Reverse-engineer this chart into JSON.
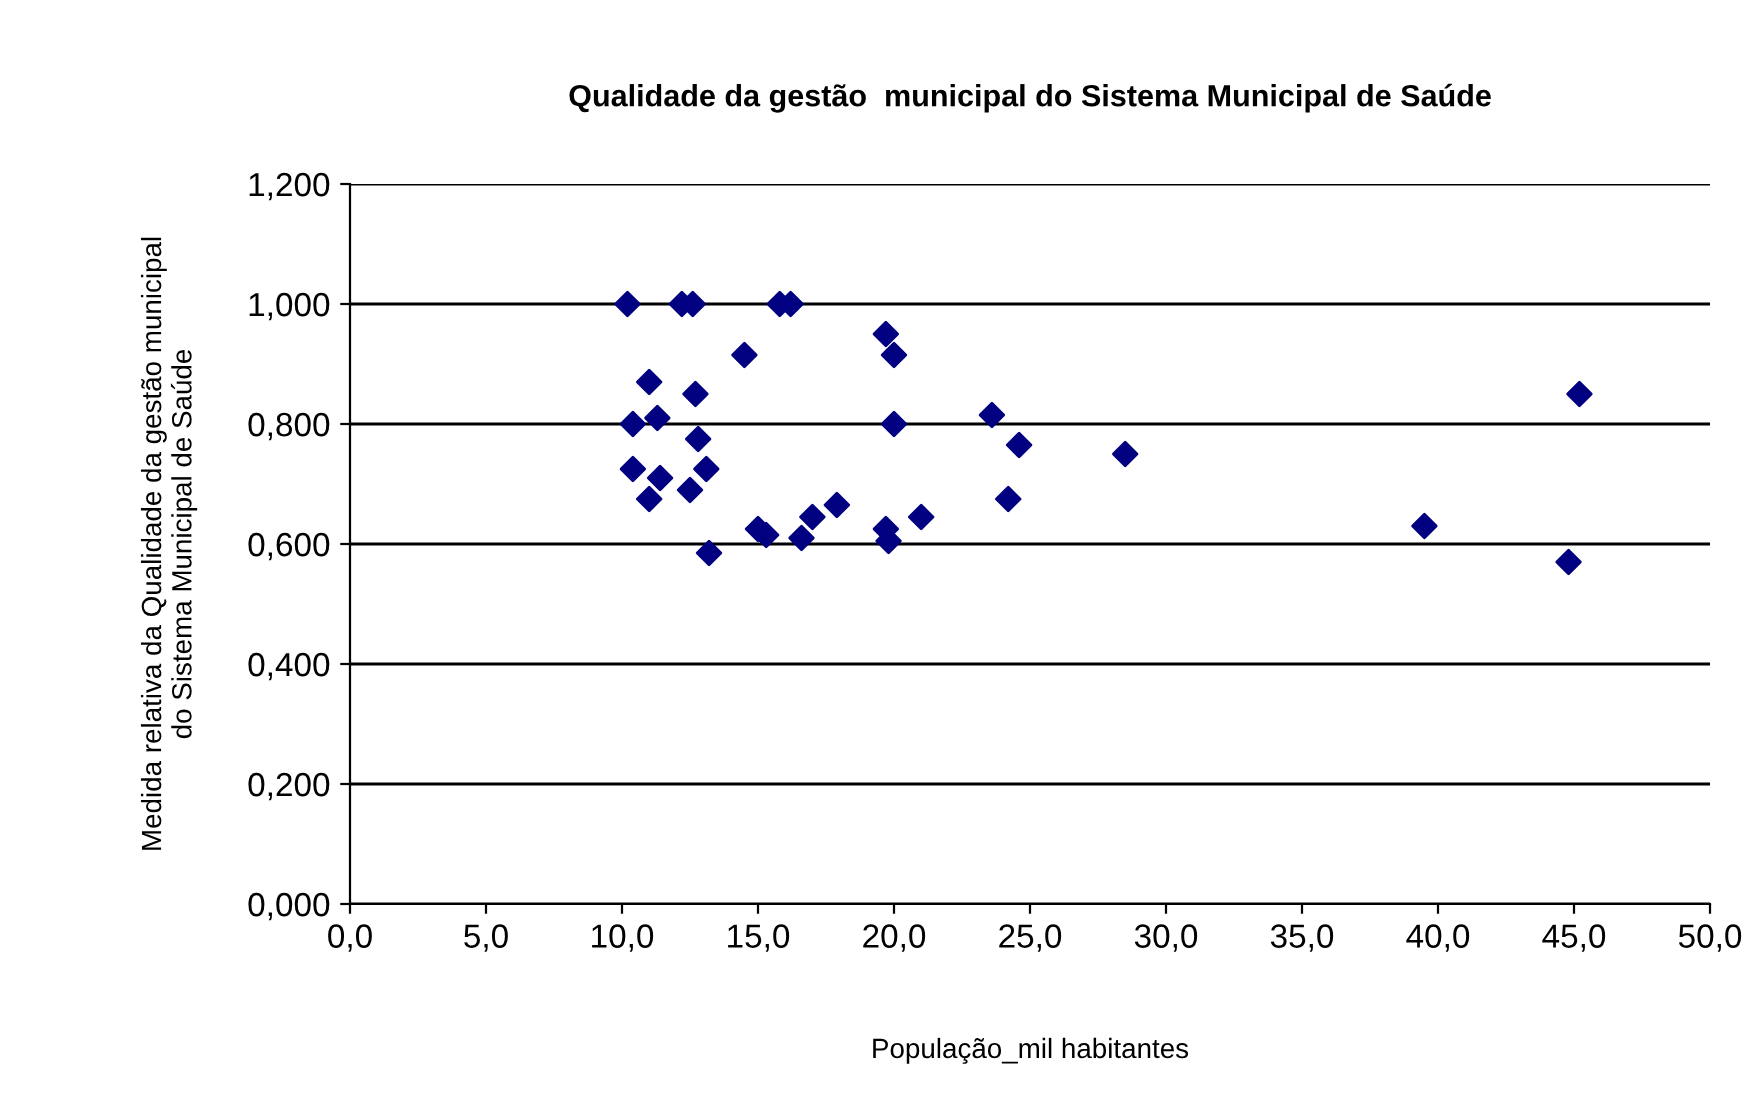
{
  "chart_data": {
    "type": "scatter",
    "title": "Qualidade da gestão  municipal do Sistema Municipal de Saúde",
    "xlabel": "População_mil habitantes",
    "ylabel": "Medida relativa da Qualidade da gestão municipal\ndo Sistema Municipal de Saúde",
    "marker": "diamond",
    "grid": "y",
    "legend": false,
    "xlim": [
      0,
      50
    ],
    "xticks": [
      {
        "value": 0,
        "label": "0,0"
      },
      {
        "value": 5,
        "label": "5,0"
      },
      {
        "value": 10,
        "label": "10,0"
      },
      {
        "value": 15,
        "label": "15,0"
      },
      {
        "value": 20,
        "label": "20,0"
      },
      {
        "value": 25,
        "label": "25,0"
      },
      {
        "value": 30,
        "label": "30,0"
      },
      {
        "value": 35,
        "label": "35,0"
      },
      {
        "value": 40,
        "label": "40,0"
      },
      {
        "value": 45,
        "label": "45,0"
      },
      {
        "value": 50,
        "label": "50,0"
      }
    ],
    "ylim": [
      0,
      1.2
    ],
    "yticks": [
      {
        "value": 0,
        "label": "0,000"
      },
      {
        "value": 0.2,
        "label": "0,200"
      },
      {
        "value": 0.4,
        "label": "0,400"
      },
      {
        "value": 0.6,
        "label": "0,600"
      },
      {
        "value": 0.8,
        "label": "0,800"
      },
      {
        "value": 1.0,
        "label": "1,000"
      },
      {
        "value": 1.2,
        "label": "1,200"
      }
    ],
    "series": [
      {
        "color": "#000080",
        "x": [
          10.2,
          12.2,
          12.6,
          15.8,
          16.2,
          19.7,
          20.0,
          14.5,
          11.0,
          12.7,
          10.4,
          11.3,
          20.0,
          23.6,
          24.6,
          12.8,
          28.5,
          10.4,
          13.1,
          11.4,
          12.5,
          11.0,
          24.2,
          17.9,
          21.0,
          17.0,
          15.0,
          15.3,
          19.7,
          16.6,
          19.8,
          13.2,
          39.5,
          44.8,
          45.2
        ],
        "values": [
          1.0,
          1.0,
          1.0,
          1.0,
          1.0,
          0.95,
          0.915,
          0.915,
          0.87,
          0.85,
          0.8,
          0.81,
          0.8,
          0.815,
          0.765,
          0.775,
          0.75,
          0.725,
          0.725,
          0.71,
          0.69,
          0.675,
          0.675,
          0.665,
          0.645,
          0.645,
          0.625,
          0.615,
          0.625,
          0.61,
          0.605,
          0.585,
          0.63,
          0.57,
          0.85
        ]
      }
    ]
  }
}
